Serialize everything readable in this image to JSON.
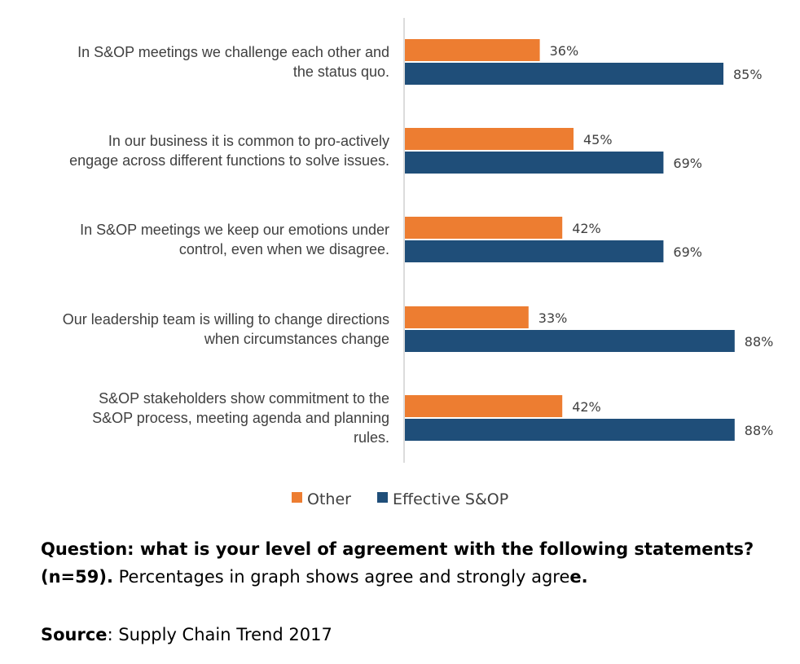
{
  "chart_data": {
    "type": "bar",
    "orientation": "horizontal",
    "categories": [
      [
        "In S&OP meetings we challenge each other and",
        "the status quo."
      ],
      [
        "In our business it is common to pro-actively",
        "engage across different functions to solve issues."
      ],
      [
        "In S&OP meetings we keep our emotions under",
        "control, even when we disagree."
      ],
      [
        "Our leadership team is willing to change directions",
        "when circumstances change"
      ],
      [
        "S&OP stakeholders show commitment to the",
        "S&OP process, meeting agenda and planning",
        "rules."
      ]
    ],
    "series": [
      {
        "name": "Other",
        "color": "#ED7D31",
        "values": [
          36,
          45,
          42,
          33,
          42
        ]
      },
      {
        "name": "Effective S&OP",
        "color": "#1F4E79",
        "values": [
          85,
          69,
          69,
          88,
          88
        ]
      }
    ],
    "value_suffix": "%",
    "xlim": [
      0,
      100
    ],
    "legend_position": "bottom-center"
  },
  "caption": {
    "question_bold": "Question: what is your level of agreement with the following statements? (n=59).",
    "question_normal": " Percentages in graph shows agree and strongly agre",
    "question_tail_bold": "e.",
    "source_bold": "Source",
    "source_normal": ": Supply Chain Trend 2017"
  }
}
